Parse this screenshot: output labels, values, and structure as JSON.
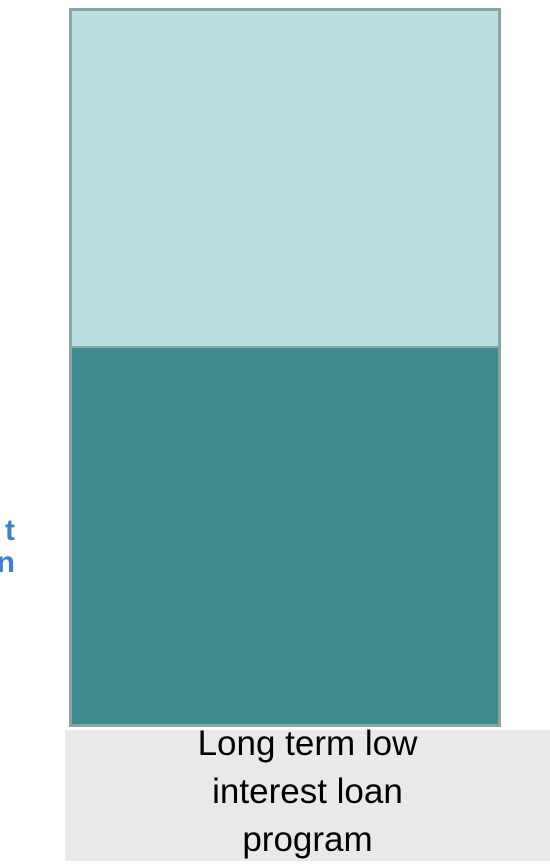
{
  "chart_data": {
    "type": "bar",
    "categories": [
      "Long term low interest loan program"
    ],
    "series": [
      {
        "values": [
          47
        ],
        "color": "#b8dfe2"
      },
      {
        "values": [
          53
        ],
        "color": "#3d8a8f"
      }
    ],
    "stacked": true
  },
  "left_fragment": [
    "t",
    "n"
  ]
}
